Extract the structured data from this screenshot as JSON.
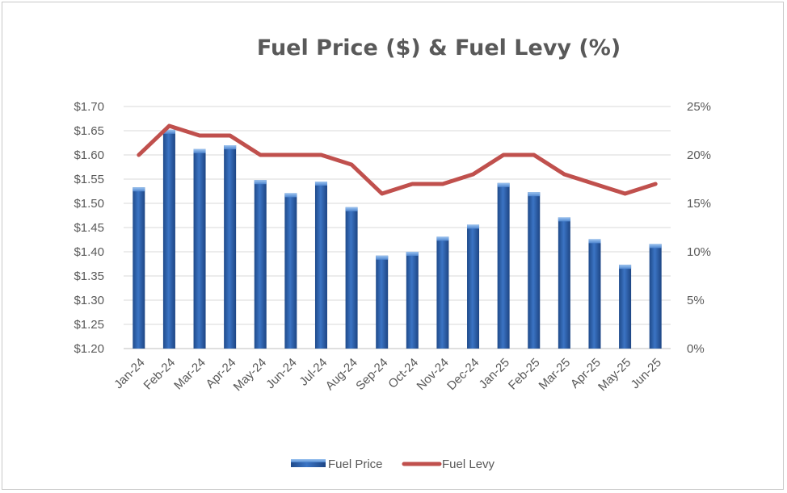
{
  "chart_data": {
    "type": "bar",
    "title": "Fuel Price ($) & Fuel Levy (%)",
    "categories": [
      "Jan-24",
      "Feb-24",
      "Mar-24",
      "Apr-24",
      "May-24",
      "Jun-24",
      "Jul-24",
      "Aug-24",
      "Sep-24",
      "Oct-24",
      "Nov-24",
      "Dec-24",
      "Jan-25",
      "Feb-25",
      "Mar-25",
      "Apr-25",
      "May-25",
      "Jun-25"
    ],
    "series": [
      {
        "name": "Fuel Price",
        "type": "bar",
        "axis": "left",
        "color": "#2e5fa8",
        "values": [
          1.533,
          1.652,
          1.612,
          1.62,
          1.548,
          1.521,
          1.545,
          1.492,
          1.392,
          1.4,
          1.431,
          1.456,
          1.542,
          1.523,
          1.471,
          1.426,
          1.373,
          1.416
        ]
      },
      {
        "name": "Fuel Levy",
        "type": "line",
        "axis": "right",
        "color": "#c0504d",
        "values": [
          20,
          23,
          22,
          22,
          20,
          20,
          20,
          19,
          16,
          17,
          17,
          18,
          20,
          20,
          18,
          17,
          16,
          17
        ]
      }
    ],
    "y_left": {
      "min": 1.2,
      "max": 1.7,
      "step": 0.05,
      "tick_labels": [
        "$1.20",
        "$1.25",
        "$1.30",
        "$1.35",
        "$1.40",
        "$1.45",
        "$1.50",
        "$1.55",
        "$1.60",
        "$1.65",
        "$1.70"
      ]
    },
    "y_right": {
      "min": 0,
      "max": 25,
      "step": 5,
      "tick_labels": [
        "0%",
        "5%",
        "10%",
        "15%",
        "20%",
        "25%"
      ]
    },
    "grid": true,
    "legend": {
      "position": "bottom",
      "items": [
        "Fuel Price",
        "Fuel Levy"
      ]
    }
  }
}
